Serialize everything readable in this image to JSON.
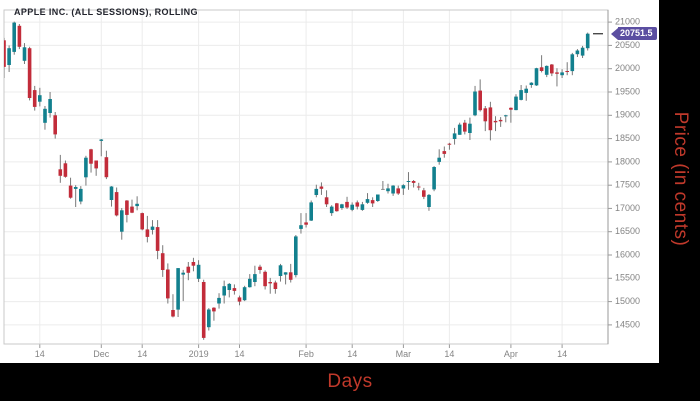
{
  "header": {
    "title": "APPLE INC. (ALL SESSIONS), ROLLING"
  },
  "axes": {
    "x_title": "Days",
    "y_title": "Price (in cents)",
    "title_color": "#c0392b"
  },
  "price_tag": {
    "value": "20751.5",
    "color": "#5b4ea1"
  },
  "colors": {
    "up": "#12808e",
    "down": "#c22c3a",
    "doji": "#8a8a8a",
    "wick": "#787878",
    "grid": "#ececec",
    "frame": "#c9c9c9",
    "axis_line": "#9a9a9a",
    "tick_text": "#848484",
    "band": "#000000",
    "last_price_dash": "#4a4a4a"
  },
  "chart_data": {
    "type": "candlestick",
    "title": "APPLE INC. (ALL SESSIONS), ROLLING",
    "xlabel": "Days",
    "ylabel": "Price (in cents)",
    "ylim": [
      14090,
      21260
    ],
    "y_ticks": [
      14500,
      15000,
      15500,
      16000,
      16500,
      17000,
      17500,
      18000,
      18500,
      19000,
      19500,
      20000,
      20500,
      21000
    ],
    "x_ticks": [
      {
        "i": 7,
        "label": "14"
      },
      {
        "i": 19,
        "label": "Dec"
      },
      {
        "i": 27,
        "label": "14"
      },
      {
        "i": 38,
        "label": "2019"
      },
      {
        "i": 46,
        "label": "14"
      },
      {
        "i": 59,
        "label": "Feb"
      },
      {
        "i": 68,
        "label": "14"
      },
      {
        "i": 78,
        "label": "Mar"
      },
      {
        "i": 87,
        "label": "14"
      },
      {
        "i": 99,
        "label": "Apr"
      },
      {
        "i": 109,
        "label": "14"
      }
    ],
    "grid": true,
    "legend": "none",
    "last_price": 20751.5,
    "candles": [
      [
        "2018-11-05",
        20610,
        20660,
        19800,
        20040
      ],
      [
        "2018-11-06",
        20080,
        20500,
        19930,
        20440
      ],
      [
        "2018-11-07",
        20360,
        21010,
        20300,
        20990
      ],
      [
        "2018-11-08",
        20920,
        20960,
        20420,
        20470
      ],
      [
        "2018-11-09",
        20170,
        20550,
        20100,
        20460
      ],
      [
        "2018-11-12",
        20440,
        20470,
        19320,
        19370
      ],
      [
        "2018-11-13",
        19540,
        19630,
        19100,
        19180
      ],
      [
        "2018-11-14",
        19290,
        19590,
        19190,
        19430
      ],
      [
        "2018-11-15",
        18840,
        19200,
        18690,
        19140
      ],
      [
        "2018-11-16",
        19050,
        19500,
        18950,
        19350
      ],
      [
        "2018-11-19",
        19000,
        19070,
        18500,
        18590
      ],
      [
        "2018-11-20",
        17840,
        18150,
        17550,
        17700
      ],
      [
        "2018-11-21",
        17970,
        18030,
        17660,
        17680
      ],
      [
        "2018-11-23",
        17490,
        17660,
        17210,
        17230
      ],
      [
        "2018-11-26",
        17420,
        17500,
        17030,
        17460
      ],
      [
        "2018-11-27",
        17150,
        17480,
        17090,
        17420
      ],
      [
        "2018-11-28",
        17670,
        18130,
        17490,
        18090
      ],
      [
        "2018-11-29",
        18270,
        18280,
        17770,
        17960
      ],
      [
        "2018-11-30",
        18030,
        18030,
        17700,
        17860
      ],
      [
        "2018-12-03",
        18450,
        18490,
        18120,
        18480
      ],
      [
        "2018-12-04",
        18100,
        18240,
        17630,
        17670
      ],
      [
        "2018-12-06",
        17180,
        17480,
        17040,
        17470
      ],
      [
        "2018-12-07",
        17350,
        17450,
        16830,
        16850
      ],
      [
        "2018-12-10",
        16500,
        17010,
        16330,
        16960
      ],
      [
        "2018-12-11",
        17170,
        17180,
        16700,
        16860
      ],
      [
        "2018-12-12",
        17040,
        17190,
        16900,
        16910
      ],
      [
        "2018-12-13",
        17050,
        17260,
        16960,
        17100
      ],
      [
        "2018-12-14",
        16900,
        16910,
        16530,
        16550
      ],
      [
        "2018-12-17",
        16550,
        16840,
        16270,
        16390
      ],
      [
        "2018-12-18",
        16540,
        16750,
        16440,
        16610
      ],
      [
        "2018-12-19",
        16600,
        16750,
        15910,
        16090
      ],
      [
        "2018-12-20",
        16040,
        16210,
        15530,
        15680
      ],
      [
        "2018-12-21",
        15690,
        15820,
        14960,
        15070
      ],
      [
        "2018-12-24",
        14820,
        15160,
        14660,
        14680
      ],
      [
        "2018-12-26",
        14830,
        15720,
        14670,
        15720
      ],
      [
        "2018-12-27",
        15580,
        15680,
        15010,
        15620
      ],
      [
        "2018-12-28",
        15750,
        15850,
        15460,
        15620
      ],
      [
        "2018-12-31",
        15850,
        15940,
        15650,
        15770
      ],
      [
        "2019-01-02",
        15490,
        15890,
        15420,
        15790
      ],
      [
        "2019-01-03",
        15420,
        15470,
        14180,
        14220
      ],
      [
        "2019-01-04",
        14450,
        14860,
        14380,
        14830
      ],
      [
        "2019-01-07",
        14870,
        14880,
        14590,
        14790
      ],
      [
        "2019-01-08",
        14960,
        15180,
        14850,
        15080
      ],
      [
        "2019-01-09",
        15130,
        15450,
        14960,
        15330
      ],
      [
        "2019-01-10",
        15250,
        15400,
        15090,
        15380
      ],
      [
        "2019-01-11",
        15290,
        15370,
        15150,
        15230
      ],
      [
        "2019-01-14",
        15090,
        15130,
        14920,
        15000
      ],
      [
        "2019-01-15",
        15030,
        15340,
        15010,
        15310
      ],
      [
        "2019-01-16",
        15310,
        15590,
        15300,
        15490
      ],
      [
        "2019-01-17",
        15420,
        15770,
        15330,
        15590
      ],
      [
        "2019-01-18",
        15750,
        15790,
        15600,
        15680
      ],
      [
        "2019-01-22",
        15640,
        15670,
        15260,
        15330
      ],
      [
        "2019-01-23",
        15420,
        15510,
        15170,
        15390
      ],
      [
        "2019-01-24",
        15410,
        15450,
        15170,
        15270
      ],
      [
        "2019-01-25",
        15550,
        15810,
        15430,
        15780
      ],
      [
        "2019-01-28",
        15580,
        15630,
        15370,
        15630
      ],
      [
        "2019-01-29",
        15630,
        15810,
        15410,
        15470
      ],
      [
        "2019-01-30",
        15570,
        16430,
        15520,
        16400
      ],
      [
        "2019-01-31",
        16560,
        16900,
        16460,
        16640
      ],
      [
        "2019-02-01",
        16700,
        16900,
        16590,
        16650
      ],
      [
        "2019-02-04",
        16740,
        17170,
        16730,
        17130
      ],
      [
        "2019-02-05",
        17290,
        17510,
        17240,
        17420
      ],
      [
        "2019-02-06",
        17470,
        17560,
        17290,
        17420
      ],
      [
        "2019-02-07",
        17240,
        17390,
        17030,
        17090
      ],
      [
        "2019-02-08",
        16900,
        17070,
        16840,
        17040
      ],
      [
        "2019-02-11",
        17110,
        17120,
        16930,
        16940
      ],
      [
        "2019-02-12",
        17010,
        17100,
        16970,
        17090
      ],
      [
        "2019-02-13",
        17140,
        17250,
        16990,
        17020
      ],
      [
        "2019-02-14",
        16970,
        17130,
        16940,
        17080
      ],
      [
        "2019-02-15",
        17130,
        17170,
        16980,
        17040
      ],
      [
        "2019-02-19",
        16970,
        17140,
        16950,
        17090
      ],
      [
        "2019-02-20",
        17120,
        17330,
        17100,
        17200
      ],
      [
        "2019-02-21",
        17180,
        17240,
        17030,
        17110
      ],
      [
        "2019-02-22",
        17160,
        17300,
        17140,
        17300
      ],
      [
        "2019-02-25",
        17420,
        17590,
        17400,
        17420
      ],
      [
        "2019-02-26",
        17370,
        17530,
        17320,
        17430
      ],
      [
        "2019-02-27",
        17320,
        17500,
        17270,
        17490
      ],
      [
        "2019-02-28",
        17430,
        17490,
        17290,
        17320
      ],
      [
        "2019-03-01",
        17430,
        17520,
        17290,
        17500
      ],
      [
        "2019-03-04",
        17570,
        17780,
        17400,
        17590
      ],
      [
        "2019-03-05",
        17590,
        17610,
        17450,
        17550
      ],
      [
        "2019-03-06",
        17470,
        17550,
        17390,
        17450
      ],
      [
        "2019-03-07",
        17390,
        17440,
        17200,
        17250
      ],
      [
        "2019-03-08",
        17030,
        17310,
        16950,
        17290
      ],
      [
        "2019-03-11",
        17410,
        17910,
        17370,
        17890
      ],
      [
        "2019-03-12",
        18000,
        18270,
        17940,
        18090
      ],
      [
        "2019-03-13",
        18230,
        18330,
        18090,
        18170
      ],
      [
        "2019-03-14",
        18390,
        18410,
        18260,
        18370
      ],
      [
        "2019-03-15",
        18490,
        18730,
        18370,
        18610
      ],
      [
        "2019-03-18",
        18580,
        18840,
        18580,
        18800
      ],
      [
        "2019-03-19",
        18840,
        18900,
        18590,
        18650
      ],
      [
        "2019-03-20",
        18620,
        18950,
        18470,
        18820
      ],
      [
        "2019-03-21",
        19000,
        19630,
        18980,
        19510
      ],
      [
        "2019-03-22",
        19530,
        19770,
        19080,
        19110
      ],
      [
        "2019-03-25",
        19150,
        19200,
        18660,
        18870
      ],
      [
        "2019-03-26",
        19170,
        19290,
        18460,
        18680
      ],
      [
        "2019-03-27",
        18880,
        18980,
        18660,
        18850
      ],
      [
        "2019-03-28",
        18900,
        18960,
        18750,
        18870
      ],
      [
        "2019-03-29",
        18980,
        19010,
        18850,
        19000
      ],
      [
        "2019-04-01",
        19160,
        19170,
        18840,
        19120
      ],
      [
        "2019-04-02",
        19110,
        19450,
        19110,
        19400
      ],
      [
        "2019-04-03",
        19330,
        19650,
        19320,
        19540
      ],
      [
        "2019-04-04",
        19480,
        19640,
        19310,
        19570
      ],
      [
        "2019-04-05",
        19650,
        19710,
        19590,
        19700
      ],
      [
        "2019-04-08",
        19640,
        20020,
        19630,
        20010
      ],
      [
        "2019-04-09",
        20030,
        20290,
        19920,
        19950
      ],
      [
        "2019-04-10",
        19870,
        20070,
        19820,
        20060
      ],
      [
        "2019-04-11",
        20090,
        20100,
        19840,
        19900
      ],
      [
        "2019-04-12",
        19920,
        20010,
        19620,
        19890
      ],
      [
        "2019-04-15",
        19860,
        19990,
        19800,
        19920
      ],
      [
        "2019-04-16",
        19950,
        20140,
        19860,
        19930
      ],
      [
        "2019-04-17",
        19950,
        20340,
        19860,
        20310
      ],
      [
        "2019-04-18",
        20310,
        20420,
        20250,
        20390
      ],
      [
        "2019-04-22",
        20280,
        20490,
        20230,
        20450
      ],
      [
        "2019-04-23",
        20440,
        20775,
        20390,
        20751.5
      ]
    ]
  }
}
